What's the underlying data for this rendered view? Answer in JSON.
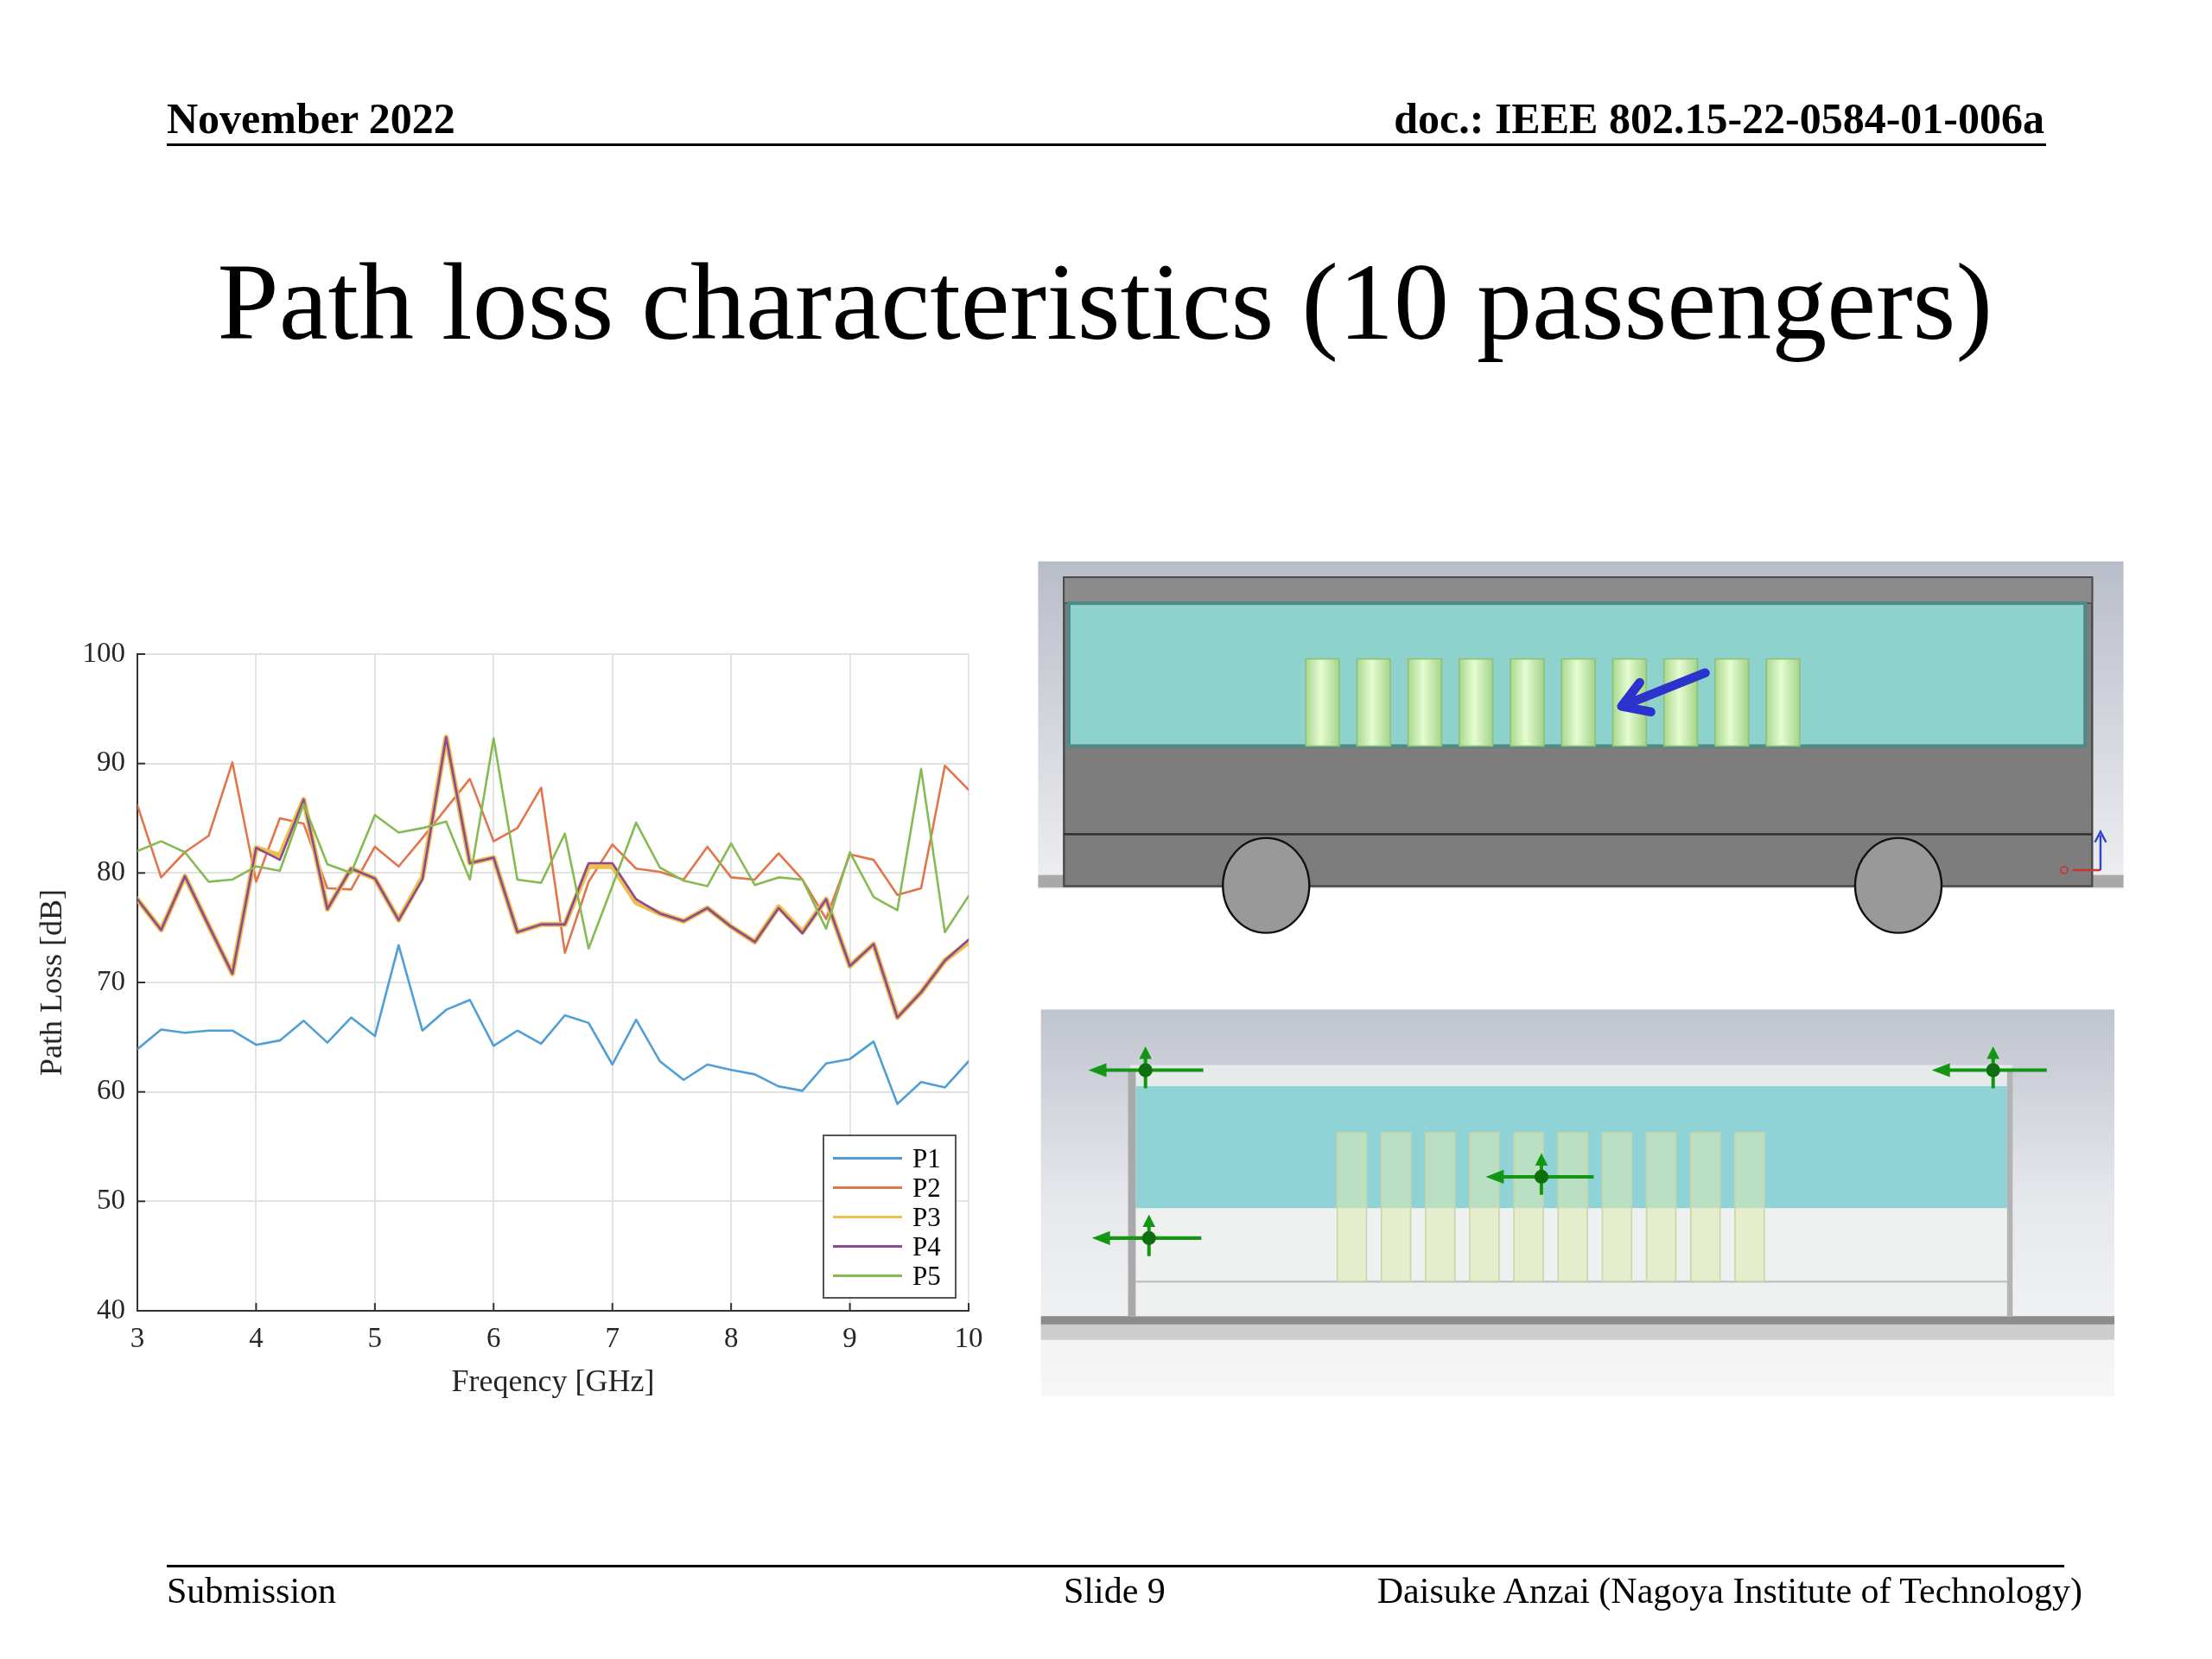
{
  "chart_data": {
    "type": "line",
    "title": "Path loss characteristics (10 passengers)",
    "xlabel": "Freqency [GHz]",
    "ylabel": "Path Loss [dB]",
    "x": [
      3,
      3.2,
      3.4,
      3.6,
      3.8,
      4,
      4.2,
      4.4,
      4.6,
      4.8,
      5,
      5.2,
      5.4,
      5.6,
      5.8,
      6,
      6.2,
      6.4,
      6.6,
      6.8,
      7,
      7.2,
      7.4,
      7.6,
      7.8,
      8,
      8.2,
      8.4,
      8.6,
      8.8,
      9,
      9.2,
      9.4,
      9.6,
      9.8,
      10
    ],
    "series": [
      {
        "name": "P1",
        "color": "#4f9fd6",
        "values": [
          63.9,
          65.7,
          65.4,
          65.6,
          65.6,
          64.3,
          64.7,
          66.5,
          64.5,
          66.8,
          65.1,
          73.4,
          65.6,
          67.5,
          68.4,
          64.2,
          65.6,
          64.4,
          67.0,
          66.3,
          62.5,
          66.6,
          62.8,
          61.1,
          62.5,
          62.0,
          61.6,
          60.5,
          60.1,
          62.6,
          63.0,
          64.6,
          58.9,
          60.9,
          60.4,
          62.8
        ]
      },
      {
        "name": "P2",
        "color": "#e4744a",
        "values": [
          86.2,
          79.6,
          81.9,
          83.4,
          90.1,
          79.2,
          85.0,
          84.5,
          78.6,
          78.5,
          82.4,
          80.6,
          83.2,
          85.9,
          88.6,
          82.9,
          84.1,
          87.8,
          72.7,
          79.2,
          82.6,
          80.4,
          80.1,
          79.4,
          82.4,
          79.6,
          79.4,
          81.8,
          79.4,
          75.8,
          81.7,
          81.2,
          78.0,
          78.6,
          89.8,
          87.6
        ]
      },
      {
        "name": "P3",
        "color": "#eebf4a",
        "values": [
          77.6,
          74.8,
          79.7,
          75.2,
          70.8,
          82.3,
          81.6,
          86.7,
          76.7,
          80.4,
          79.5,
          75.7,
          79.6,
          92.4,
          80.9,
          81.4,
          74.6,
          75.3,
          75.3,
          80.6,
          80.6,
          77.3,
          76.3,
          75.6,
          76.8,
          75.1,
          73.7,
          76.9,
          74.6,
          77.6,
          71.5,
          73.5,
          66.8,
          69.1,
          72.0,
          73.7
        ]
      },
      {
        "name": "P4",
        "color": "#8a4a98",
        "values": [
          77.6,
          74.8,
          79.7,
          75.2,
          70.8,
          82.3,
          81.2,
          86.7,
          76.7,
          80.4,
          79.5,
          75.7,
          79.4,
          92.4,
          80.9,
          81.4,
          74.6,
          75.3,
          75.3,
          80.9,
          80.9,
          77.6,
          76.3,
          75.6,
          76.8,
          75.1,
          73.7,
          76.8,
          74.5,
          77.6,
          71.5,
          73.5,
          66.8,
          69.1,
          72.0,
          73.9
        ]
      },
      {
        "name": "P5",
        "color": "#86ba52",
        "values": [
          82.0,
          82.9,
          81.9,
          79.2,
          79.4,
          80.6,
          80.2,
          86.3,
          80.8,
          80.0,
          85.3,
          83.7,
          84.1,
          84.7,
          79.4,
          92.3,
          79.4,
          79.1,
          83.6,
          73.1,
          78.8,
          84.6,
          80.5,
          79.3,
          78.8,
          82.7,
          78.9,
          79.6,
          79.4,
          74.9,
          81.9,
          77.8,
          76.6,
          89.5,
          74.6,
          77.9
        ]
      }
    ],
    "xlim": [
      3,
      10
    ],
    "xticks": [
      3,
      4,
      5,
      6,
      7,
      8,
      9,
      10
    ],
    "ylim": [
      40,
      100
    ],
    "yticks": [
      40,
      50,
      60,
      70,
      80,
      90,
      100
    ],
    "grid": true,
    "legend": "bottom right",
    "annotations": [
      "November 2022",
      "doc.: IEEE 802.15-22-0584-01-006a",
      "Submission",
      "Slide 9",
      "Daisuke Anzai (Nagoya Institute of Technology)"
    ]
  }
}
